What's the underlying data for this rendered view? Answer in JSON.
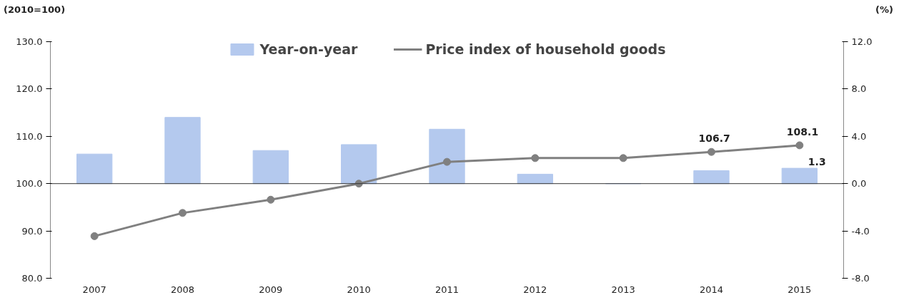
{
  "chart_data": {
    "type": "line",
    "ylabel": "(2010=100)",
    "y2label": "(%)",
    "categories": [
      "2007",
      "2008",
      "2009",
      "2010",
      "2011",
      "2012",
      "2013",
      "2014",
      "2015"
    ],
    "ylim": [
      80,
      130
    ],
    "yticks": [
      {
        "value": 80,
        "label": "80.0"
      },
      {
        "value": 90,
        "label": "90.0"
      },
      {
        "value": 100,
        "label": "100.0"
      },
      {
        "value": 110,
        "label": "110.0"
      },
      {
        "value": 120,
        "label": "120.0"
      },
      {
        "value": 130,
        "label": "130.0"
      }
    ],
    "y2lim": [
      -8,
      12
    ],
    "y2ticks": [
      {
        "value": -8,
        "label": "-8.0"
      },
      {
        "value": -4,
        "label": "-4.0"
      },
      {
        "value": 0,
        "label": "0.0"
      },
      {
        "value": 4,
        "label": "4.0"
      },
      {
        "value": 8,
        "label": "8.0"
      },
      {
        "value": 12,
        "label": "12.0"
      }
    ],
    "grid": false,
    "legend": "top",
    "ref_lines": [
      {
        "axis": "y2",
        "value": 0
      }
    ],
    "series": [
      {
        "name": "Year-on-year",
        "type": "bar",
        "axis": "y2",
        "color": "#b4c9ee",
        "values": [
          2.5,
          5.6,
          2.8,
          3.3,
          4.6,
          0.8,
          0.0,
          1.1,
          1.3
        ],
        "value_labels": [
          null,
          null,
          null,
          null,
          null,
          null,
          null,
          null,
          "1.3"
        ]
      },
      {
        "name": "Price index of household goods",
        "axis": "y",
        "color": "#808080",
        "marker": "circle",
        "values": [
          88.9,
          93.8,
          96.6,
          100.0,
          104.6,
          105.4,
          105.4,
          106.7,
          108.1
        ],
        "value_labels": [
          null,
          null,
          null,
          null,
          null,
          null,
          null,
          "106.7",
          "108.1"
        ]
      }
    ]
  }
}
